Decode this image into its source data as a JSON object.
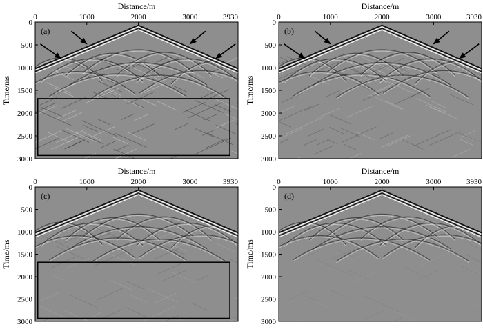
{
  "chart_data": [
    {
      "type": "heatmap",
      "panel_label": "(a)",
      "title": "",
      "xlabel": "Distance/m",
      "ylabel": "Time/ms",
      "xlim": [
        0,
        3930
      ],
      "ylim": [
        3000,
        0
      ],
      "xticks": [
        0,
        1000,
        2000,
        3000,
        3930
      ],
      "yticks": [
        0,
        500,
        1000,
        1500,
        2000,
        2500,
        3000
      ],
      "xtick_labels": [
        "0",
        "1000",
        "2000",
        "3000",
        "3930"
      ],
      "ytick_labels": [
        "0",
        "500",
        "1000",
        "1500",
        "2000",
        "2500",
        "3000"
      ],
      "noise_level": "high",
      "first_break": {
        "apex_x": 2000,
        "apex_t": 70,
        "end_t": 1020
      },
      "highlight_box": {
        "x0": 50,
        "x1": 3770,
        "t0": 1680,
        "t1": 2930
      },
      "arrows": [
        {
          "x": 1000,
          "t": 480,
          "from_x": 700,
          "from_t": 200
        },
        {
          "x": 500,
          "t": 800,
          "from_x": 100,
          "from_t": 480
        },
        {
          "x": 3000,
          "t": 480,
          "from_x": 3300,
          "from_t": 200
        },
        {
          "x": 3500,
          "t": 800,
          "from_x": 3880,
          "from_t": 480
        }
      ]
    },
    {
      "type": "heatmap",
      "panel_label": "(b)",
      "title": "",
      "xlabel": "Distance/m",
      "ylabel": "Time/ms",
      "xlim": [
        0,
        3930
      ],
      "ylim": [
        3000,
        0
      ],
      "xticks": [
        0,
        1000,
        2000,
        3000,
        3930
      ],
      "yticks": [
        0,
        500,
        1000,
        1500,
        2000,
        2500,
        3000
      ],
      "xtick_labels": [
        "0",
        "1000",
        "2000",
        "3000",
        "3930"
      ],
      "ytick_labels": [
        "0",
        "500",
        "1000",
        "1500",
        "2000",
        "2500",
        "3000"
      ],
      "noise_level": "medium",
      "first_break": {
        "apex_x": 2000,
        "apex_t": 70,
        "end_t": 1020
      },
      "highlight_box": null,
      "arrows": [
        {
          "x": 1000,
          "t": 480,
          "from_x": 700,
          "from_t": 200
        },
        {
          "x": 500,
          "t": 800,
          "from_x": 100,
          "from_t": 480
        },
        {
          "x": 3000,
          "t": 480,
          "from_x": 3300,
          "from_t": 200
        },
        {
          "x": 3500,
          "t": 800,
          "from_x": 3880,
          "from_t": 480
        }
      ]
    },
    {
      "type": "heatmap",
      "panel_label": "(c)",
      "title": "",
      "xlabel": "Distance/m",
      "ylabel": "Time/ms",
      "xlim": [
        0,
        3930
      ],
      "ylim": [
        3000,
        0
      ],
      "xticks": [
        0,
        1000,
        2000,
        3000,
        3930
      ],
      "yticks": [
        0,
        500,
        1000,
        1500,
        2000,
        2500,
        3000
      ],
      "xtick_labels": [
        "0",
        "1000",
        "2000",
        "3000",
        "3930"
      ],
      "ytick_labels": [
        "0",
        "500",
        "1000",
        "1500",
        "2000",
        "2500",
        "3000"
      ],
      "noise_level": "low",
      "first_break": {
        "apex_x": 2000,
        "apex_t": 70,
        "end_t": 1020
      },
      "highlight_box": {
        "x0": 50,
        "x1": 3770,
        "t0": 1680,
        "t1": 2930
      },
      "arrows": []
    },
    {
      "type": "heatmap",
      "panel_label": "(d)",
      "title": "",
      "xlabel": "Distance/m",
      "ylabel": "Time/ms",
      "xlim": [
        0,
        3930
      ],
      "ylim": [
        3000,
        0
      ],
      "xticks": [
        0,
        1000,
        2000,
        3000,
        3930
      ],
      "yticks": [
        0,
        500,
        1000,
        1500,
        2000,
        2500,
        3000
      ],
      "xtick_labels": [
        "0",
        "1000",
        "2000",
        "3000",
        "3930"
      ],
      "ytick_labels": [
        "0",
        "500",
        "1000",
        "1500",
        "2000",
        "2500",
        "3000"
      ],
      "noise_level": "very-low",
      "first_break": {
        "apex_x": 2000,
        "apex_t": 70,
        "end_t": 1020
      },
      "highlight_box": null,
      "arrows": []
    }
  ],
  "colors": {
    "background": "#8e8e8e",
    "axis": "#000000",
    "event_dark": "#111111",
    "event_light": "#f4f4f4"
  }
}
